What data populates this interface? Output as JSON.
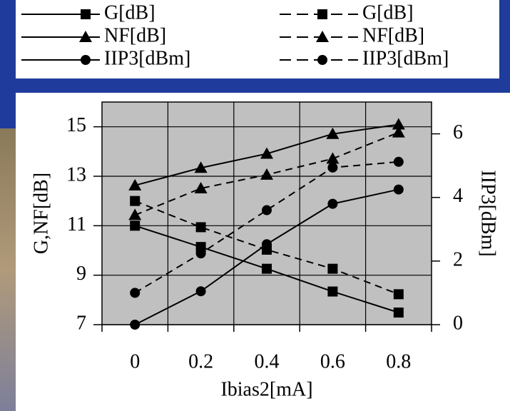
{
  "chart_data": {
    "type": "line",
    "xlabel": "Ibias2[mA]",
    "ylabel": "G,NF[dB]",
    "y2label": "IIP3[dBm]",
    "categories": [
      "0",
      "0.2",
      "0.4",
      "0.6",
      "0.8"
    ],
    "ylim": [
      7,
      16
    ],
    "yticks": [
      7,
      9,
      11,
      13,
      15
    ],
    "y2lim": [
      0,
      7
    ],
    "y2ticks": [
      0,
      2,
      4,
      6
    ],
    "grid": true,
    "series": [
      {
        "name": "G[dB]",
        "color": "#000000",
        "marker": "square",
        "dash": false,
        "values": [
          11.0,
          10.14,
          9.26,
          8.34,
          7.49
        ]
      },
      {
        "name": "NF[dB]",
        "color": "#000000",
        "marker": "triangle",
        "dash": false,
        "values": [
          12.63,
          13.34,
          13.91,
          14.71,
          15.09
        ]
      },
      {
        "name": "IIP3[dBm]",
        "color": "#000000",
        "marker": "circle",
        "dash": false,
        "axis": "y2",
        "values": [
          0.0,
          1.05,
          2.53,
          3.8,
          4.25
        ]
      },
      {
        "name": "G[dB]",
        "color": "#000000",
        "marker": "square",
        "dash": true,
        "values": [
          12.0,
          10.94,
          10.03,
          9.26,
          8.23
        ]
      },
      {
        "name": "NF[dB]",
        "color": "#000000",
        "marker": "triangle",
        "dash": true,
        "values": [
          11.43,
          12.51,
          13.06,
          13.71,
          14.77
        ]
      },
      {
        "name": "IIP3[dBm]",
        "color": "#000000",
        "marker": "circle",
        "dash": true,
        "axis": "y2",
        "values": [
          1.0,
          2.24,
          3.6,
          4.94,
          5.12
        ]
      }
    ]
  }
}
